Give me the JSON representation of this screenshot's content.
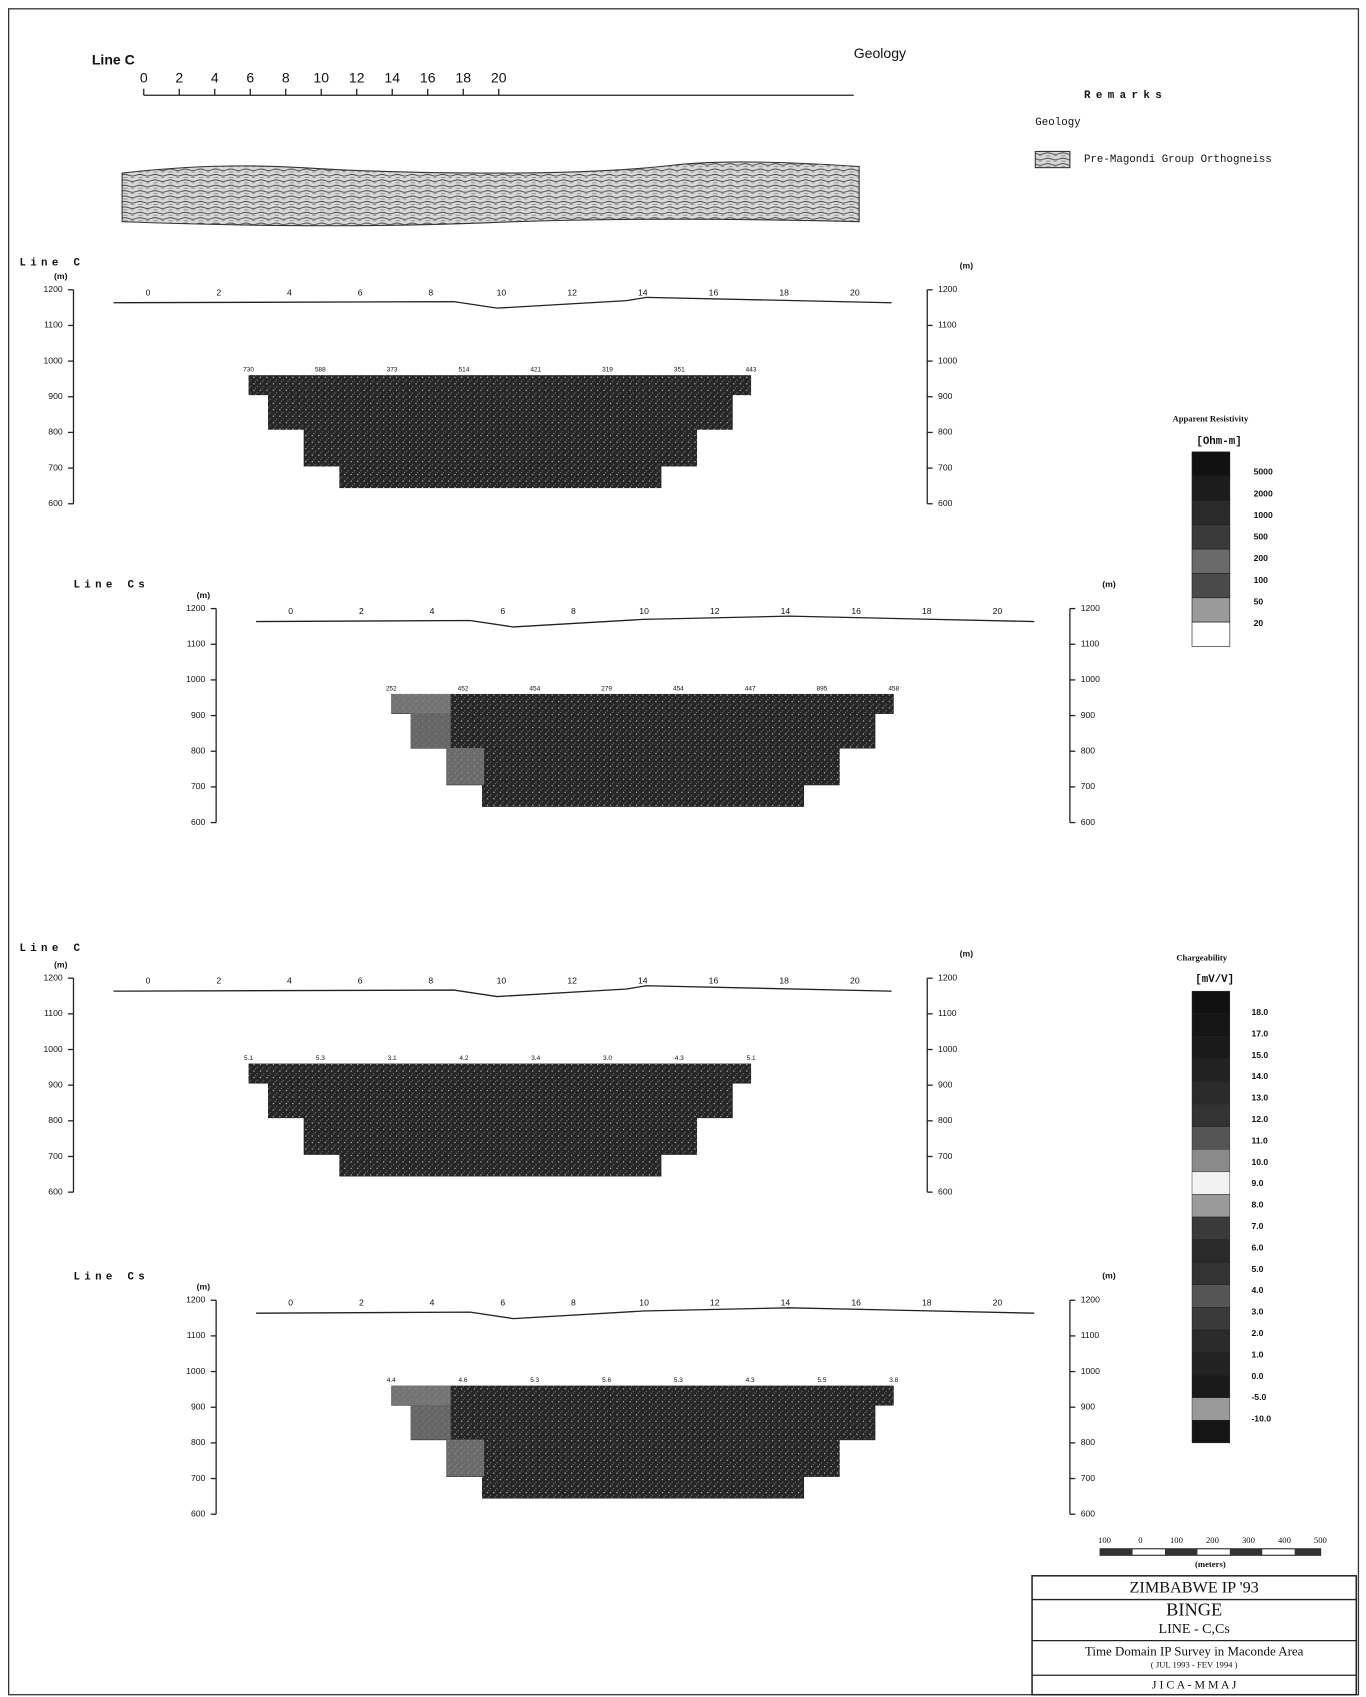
{
  "geology_section": {
    "line": "Line C",
    "title": "Geology",
    "distance_labels": [
      "0",
      "2",
      "4",
      "6",
      "8",
      "10",
      "12",
      "14",
      "16",
      "18",
      "20"
    ]
  },
  "remarks": {
    "title": "Remarks",
    "subtitle": "Geology",
    "legend_label": "Pre-Magondi Group Orthogneiss"
  },
  "sections": [
    {
      "line": "Line C",
      "unit": "(m)",
      "elevation_labels": [
        "1200",
        "1100",
        "1000",
        "900",
        "800",
        "700",
        "600"
      ],
      "distance_labels": [
        "0",
        "2",
        "4",
        "6",
        "8",
        "10",
        "12",
        "14",
        "16",
        "18",
        "20"
      ],
      "top_values": [
        "730",
        "588",
        "373",
        "514",
        "421",
        "319",
        "351",
        "443"
      ]
    },
    {
      "line": "Line Cs",
      "unit": "(m)",
      "elevation_labels": [
        "1200",
        "1100",
        "1000",
        "900",
        "800",
        "700",
        "600"
      ],
      "distance_labels": [
        "0",
        "2",
        "4",
        "6",
        "8",
        "10",
        "12",
        "14",
        "16",
        "18",
        "20"
      ],
      "top_values": [
        "252",
        "452",
        "454",
        "279",
        "454",
        "447",
        "895",
        "458"
      ]
    },
    {
      "line": "Line C",
      "unit": "(m)",
      "elevation_labels": [
        "1200",
        "1100",
        "1000",
        "900",
        "800",
        "700",
        "600"
      ],
      "distance_labels": [
        "0",
        "2",
        "4",
        "6",
        "8",
        "10",
        "12",
        "14",
        "16",
        "18",
        "20"
      ],
      "top_values": [
        "5.1",
        "5.3",
        "3.1",
        "4.2",
        "3.4",
        "3.0",
        "4.3",
        "5.1"
      ]
    },
    {
      "line": "Line Cs",
      "unit": "(m)",
      "elevation_labels": [
        "1200",
        "1100",
        "1000",
        "900",
        "800",
        "700",
        "600"
      ],
      "distance_labels": [
        "0",
        "2",
        "4",
        "6",
        "8",
        "10",
        "12",
        "14",
        "16",
        "18",
        "20"
      ],
      "top_values": [
        "4.4",
        "4.6",
        "5.3",
        "5.6",
        "5.3",
        "4.3",
        "5.5",
        "3.8"
      ]
    }
  ],
  "resistivity_legend": {
    "title": "Apparent Resistivity",
    "unit": "[Ohm-m]",
    "levels": [
      "5000",
      "2000",
      "1000",
      "500",
      "200",
      "100",
      "50",
      "20"
    ]
  },
  "chargeability_legend": {
    "title": "Chargeability",
    "unit": "[mV/V]",
    "levels": [
      "18.0",
      "17.0",
      "15.0",
      "14.0",
      "13.0",
      "12.0",
      "11.0",
      "10.0",
      "9.0",
      "8.0",
      "7.0",
      "6.0",
      "5.0",
      "4.0",
      "3.0",
      "2.0",
      "1.0",
      "0.0",
      "-5.0",
      "-10.0"
    ]
  },
  "scale_bar": {
    "labels": [
      "100",
      "0",
      "100",
      "200",
      "300",
      "400",
      "500"
    ],
    "unit": "(meters)"
  },
  "title_block": {
    "project": "ZIMBABWE IP '93",
    "area": "BINGE",
    "line": "LINE - C,Cs",
    "survey": "Time Domain IP Survey in Maconde Area",
    "period": "( JUL 1993 - FEV 1994 )",
    "client": "J I C A - M M A J"
  }
}
